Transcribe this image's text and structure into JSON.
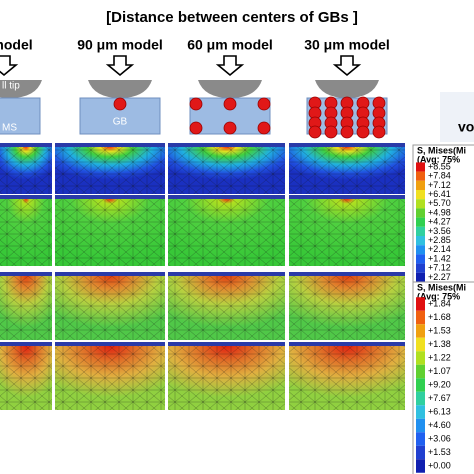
{
  "header": {
    "title": "[Distance between centers of GBs ]"
  },
  "columns": [
    {
      "label": "model",
      "tip": "ll tip",
      "body": "MS"
    },
    {
      "label": "90 μm model",
      "body": "GB"
    },
    {
      "label": "60 μm model"
    },
    {
      "label": "30 μm model"
    }
  ],
  "side_label": "vo",
  "legends": [
    {
      "title": "S, Mises(Mi",
      "subtitle": "(Avg: 75%",
      "values": [
        "+8.55",
        "+7.84",
        "+7.12",
        "+6.41",
        "+5.70",
        "+4.98",
        "+4.27",
        "+3.56",
        "+2.85",
        "+2.14",
        "+1.42",
        "+7.12",
        "+2.27"
      ]
    },
    {
      "title": "S, Mises(Mi",
      "subtitle": "(Avg: 75%",
      "values": [
        "+1.84",
        "+1.68",
        "+1.53",
        "+1.38",
        "+1.22",
        "+1.07",
        "+9.20",
        "+7.67",
        "+6.13",
        "+4.60",
        "+3.06",
        "+1.53",
        "+0.00"
      ]
    }
  ]
}
